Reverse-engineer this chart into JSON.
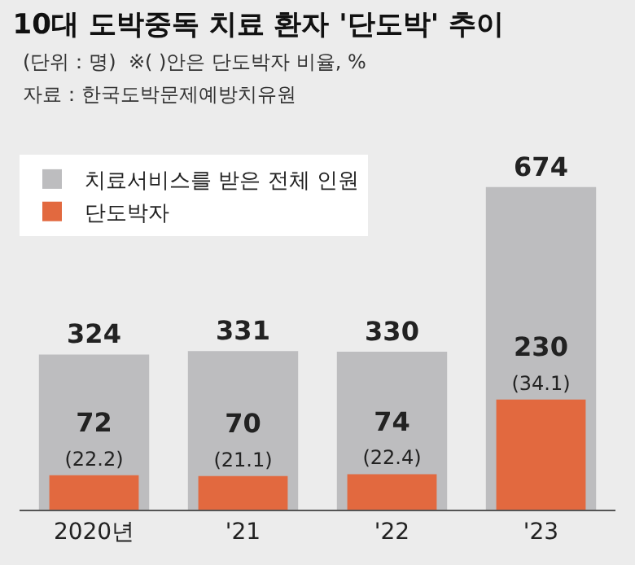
{
  "chart_data": {
    "type": "bar",
    "title": "10대 도박중독 치료 환자 '단도박' 추이",
    "subtitle": "(단위：명)  ※( )안은 단도박자 비율, %",
    "annotations": [
      "자료：한국도박문제예방치유원"
    ],
    "categories": [
      "2020년",
      "'21",
      "'22",
      "'23"
    ],
    "series": [
      {
        "name": "치료서비스를 받은 전체 인원",
        "color": "#bdbdbf",
        "values": [
          324,
          331,
          330,
          674
        ],
        "value_labels": [
          "324",
          "331",
          "330",
          "674"
        ]
      },
      {
        "name": "단도박자",
        "color": "#e2693f",
        "values": [
          72,
          70,
          74,
          230
        ],
        "value_labels": [
          "72\n(22.2)",
          "70\n(21.1)",
          "74\n(22.4)",
          "230\n(34.1)"
        ]
      }
    ],
    "legend": "top left",
    "grid": false
  }
}
